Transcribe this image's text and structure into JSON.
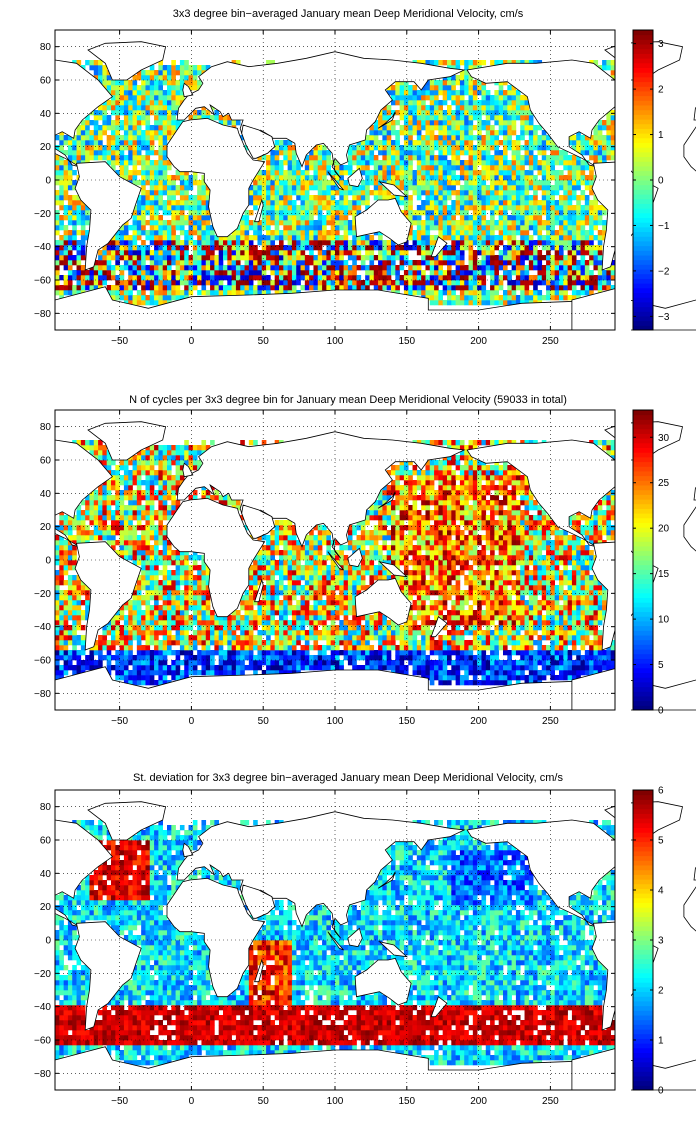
{
  "chart_data": [
    {
      "type": "heatmap",
      "title": "3x3 degree bin−averaged January mean Deep Meridional Velocity, cm/s",
      "x_ticks": [
        "−50",
        "0",
        "50",
        "100",
        "150",
        "200",
        "250"
      ],
      "y_ticks": [
        "80",
        "60",
        "40",
        "20",
        "0",
        "−20",
        "−40",
        "−60",
        "−80"
      ],
      "xlim": [
        -95,
        295
      ],
      "ylim": [
        -90,
        90
      ],
      "colorbar_ticks": [
        "3",
        "2",
        "1",
        "0",
        "−1",
        "−2",
        "−3"
      ],
      "colorbar_range": [
        -3.3,
        3.3
      ],
      "grid": true,
      "colormap": "jet"
    },
    {
      "type": "heatmap",
      "title": "N of cycles per 3x3 degree bin for January mean Deep Meridional Velocity (59033 in total)",
      "x_ticks": [
        "−50",
        "0",
        "50",
        "100",
        "150",
        "200",
        "250"
      ],
      "y_ticks": [
        "80",
        "60",
        "40",
        "20",
        "0",
        "−20",
        "−40",
        "−60",
        "−80"
      ],
      "xlim": [
        -95,
        295
      ],
      "ylim": [
        -90,
        90
      ],
      "colorbar_ticks": [
        "30",
        "25",
        "20",
        "15",
        "10",
        "5",
        "0"
      ],
      "colorbar_range": [
        0,
        33
      ],
      "grid": true,
      "colormap": "jet"
    },
    {
      "type": "heatmap",
      "title": "St. deviation for 3x3 degree bin−averaged January mean Deep Meridional Velocity, cm/s",
      "x_ticks": [
        "−50",
        "0",
        "50",
        "100",
        "150",
        "200",
        "250"
      ],
      "y_ticks": [
        "80",
        "60",
        "40",
        "20",
        "0",
        "−20",
        "−40",
        "−60",
        "−80"
      ],
      "xlim": [
        -95,
        295
      ],
      "ylim": [
        -90,
        90
      ],
      "colorbar_ticks": [
        "6",
        "5",
        "4",
        "3",
        "2",
        "1",
        "0"
      ],
      "colorbar_range": [
        0,
        6
      ],
      "grid": true,
      "colormap": "jet"
    }
  ]
}
